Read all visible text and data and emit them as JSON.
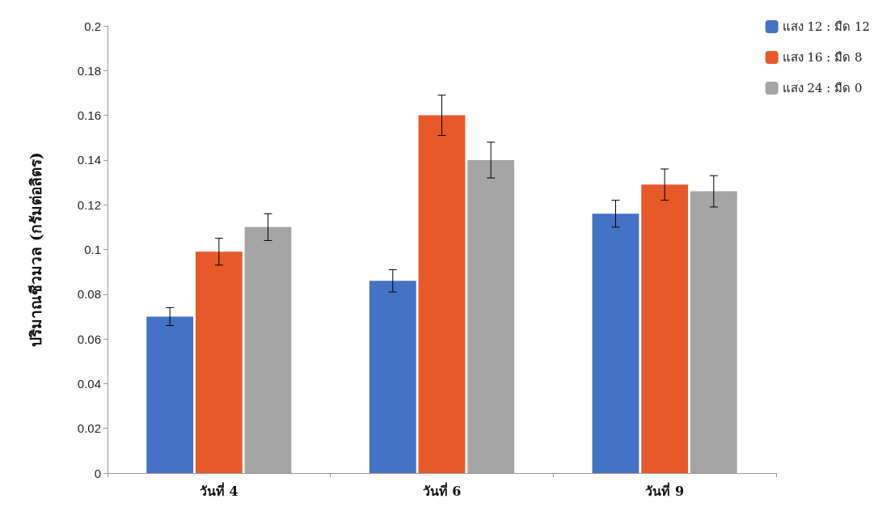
{
  "chart_data": {
    "type": "bar",
    "ylabel": "ปริมาณชีวมวล (กรัมต่อลิตร)",
    "categories": [
      "วันที่ 4",
      "วันที่ 6",
      "วันที่ 9"
    ],
    "series": [
      {
        "name": "แสง 12 : มืด 12",
        "color": "#4472c4",
        "values": [
          0.07,
          0.086,
          0.116
        ],
        "errors": [
          0.004,
          0.005,
          0.006
        ]
      },
      {
        "name": "แสง 16 : มืด 8",
        "color": "#e8592a",
        "values": [
          0.099,
          0.16,
          0.129
        ],
        "errors": [
          0.006,
          0.009,
          0.007
        ]
      },
      {
        "name": "แสง 24 : มืด 0",
        "color": "#a5a5a5",
        "values": [
          0.11,
          0.14,
          0.126
        ],
        "errors": [
          0.006,
          0.008,
          0.007
        ]
      }
    ],
    "ylim": [
      0,
      0.2
    ],
    "yticks": [
      0,
      0.02,
      0.04,
      0.06,
      0.08,
      0.1,
      0.12,
      0.14,
      0.16,
      0.18,
      0.2
    ],
    "grid": false,
    "legend": "top right"
  }
}
